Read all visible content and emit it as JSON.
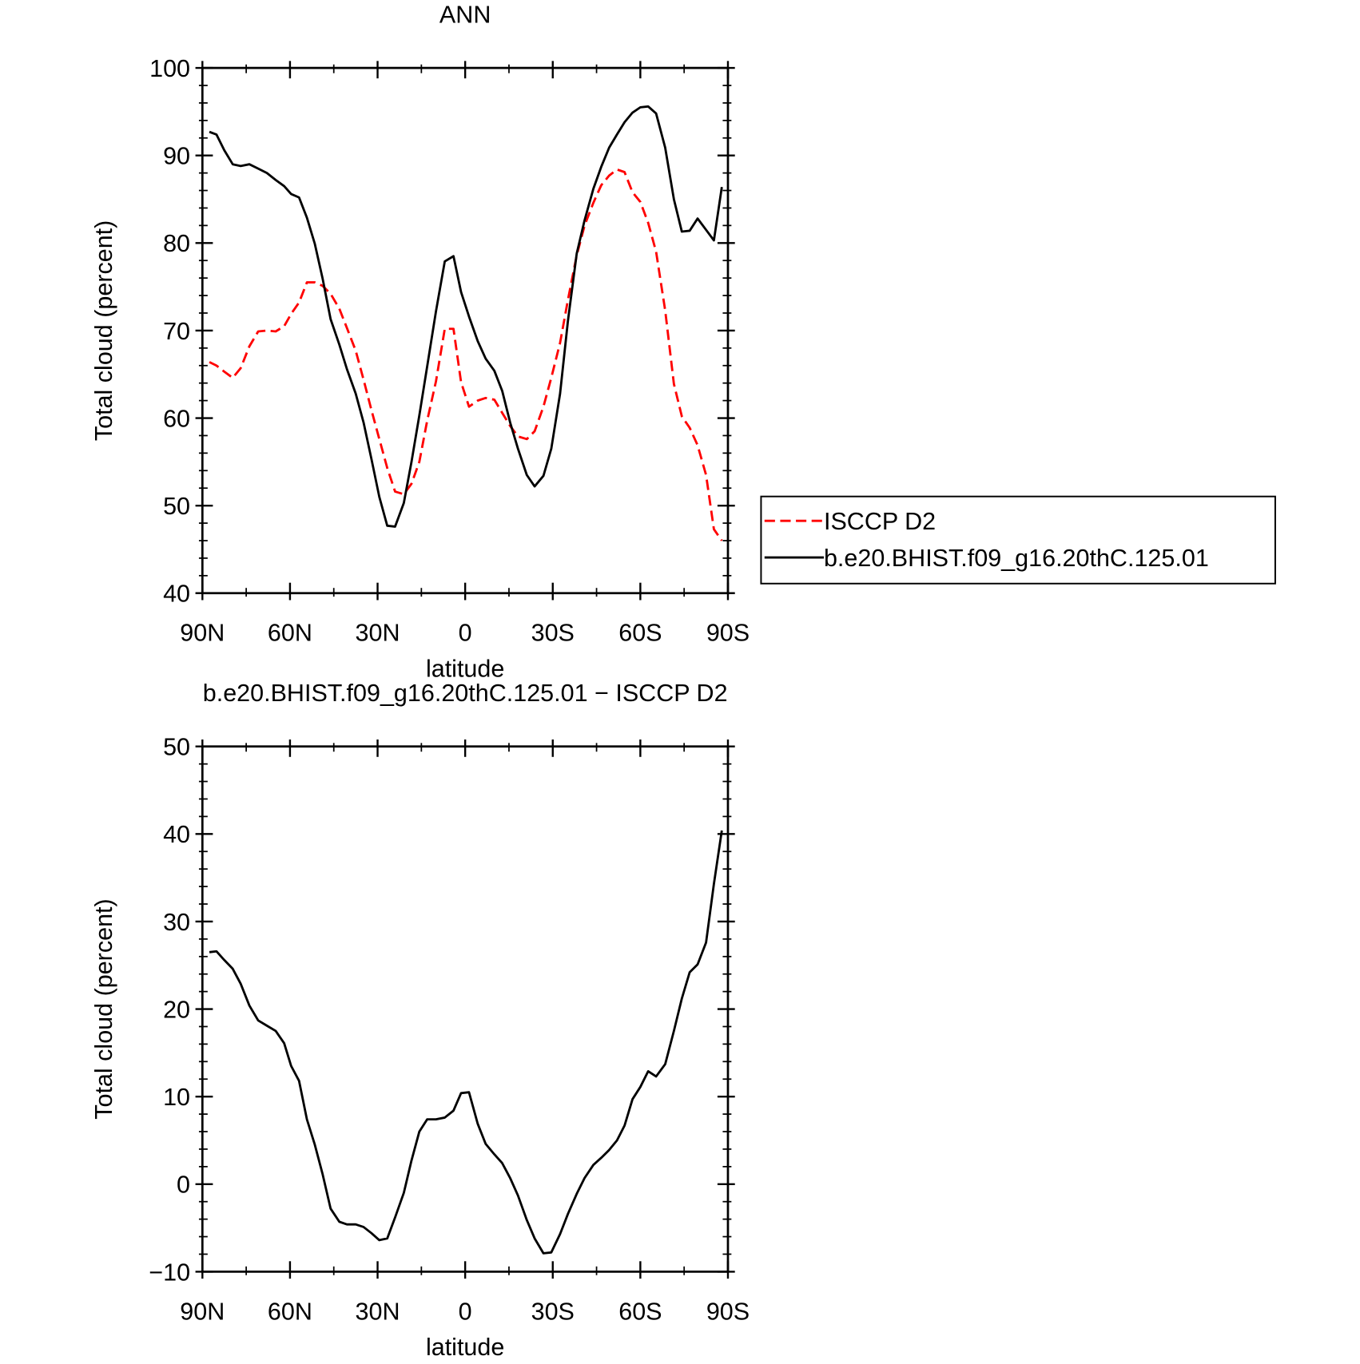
{
  "chart_data": [
    {
      "type": "line",
      "title": "ANN",
      "xlabel": "latitude",
      "ylabel": "Total cloud (percent)",
      "x": [
        87.6,
        85.2,
        82.5,
        79.6,
        76.9,
        73.9,
        70.9,
        67.9,
        64.9,
        62.0,
        59.6,
        56.9,
        54.2,
        51.5,
        48.8,
        46.1,
        43.1,
        40.5,
        37.5,
        34.8,
        32.1,
        29.4,
        26.7,
        24.0,
        21.0,
        18.4,
        15.7,
        13.0,
        10.0,
        7.0,
        4.0,
        1.4,
        -1.3,
        -4.3,
        -7.0,
        -10.0,
        -12.7,
        -15.4,
        -18.1,
        -21.1,
        -23.8,
        -26.8,
        -29.5,
        -32.5,
        -35.2,
        -38.2,
        -40.9,
        -43.9,
        -46.6,
        -49.3,
        -52.0,
        -54.6,
        -57.3,
        -60.0,
        -62.7,
        -65.4,
        -68.5,
        -71.5,
        -74.2,
        -76.9,
        -79.6,
        -82.5,
        -85.2,
        -87.9
      ],
      "series": [
        {
          "name": "ISCCP D2",
          "color": "#ff0000",
          "linestyle": "dashed",
          "values": [
            66.4,
            66.0,
            65.3,
            64.6,
            65.7,
            68.2,
            69.9,
            70.0,
            69.9,
            70.5,
            71.9,
            73.2,
            75.5,
            75.5,
            75.1,
            74.2,
            72.5,
            70.3,
            67.7,
            64.4,
            60.9,
            57.6,
            54.3,
            51.6,
            51.3,
            52.5,
            55.0,
            59.7,
            64.2,
            70.2,
            70.2,
            64.1,
            61.3,
            62.0,
            62.3,
            62.1,
            60.6,
            59.1,
            57.9,
            57.6,
            58.5,
            61.3,
            64.6,
            68.6,
            73.5,
            78.6,
            82.0,
            84.6,
            86.6,
            87.7,
            88.4,
            88.1,
            85.8,
            84.7,
            82.3,
            79.0,
            72.3,
            63.9,
            60.2,
            58.9,
            56.9,
            53.5,
            47.3,
            46.0
          ]
        },
        {
          "name": "b.e20.BHIST.f09_g16.20thC.125.01",
          "color": "#000000",
          "linestyle": "solid",
          "values": [
            92.7,
            92.4,
            90.6,
            89.0,
            88.8,
            89.0,
            88.5,
            88.0,
            87.2,
            86.5,
            85.6,
            85.2,
            82.9,
            79.9,
            75.9,
            71.3,
            68.4,
            65.6,
            62.8,
            59.5,
            55.3,
            51.0,
            47.7,
            47.6,
            50.3,
            55.0,
            60.3,
            65.9,
            72.2,
            77.9,
            78.5,
            74.4,
            71.6,
            68.8,
            66.8,
            65.4,
            63.1,
            59.5,
            56.5,
            53.5,
            52.2,
            53.4,
            56.5,
            62.8,
            71.1,
            78.8,
            82.6,
            86.2,
            88.7,
            90.9,
            92.4,
            93.8,
            94.9,
            95.5,
            95.6,
            94.8,
            90.9,
            85.0,
            81.3,
            81.4,
            82.8,
            81.5,
            80.3,
            86.4
          ]
        }
      ],
      "xlim": [
        90,
        -90
      ],
      "xticks": [
        {
          "value": 90,
          "label": "90N"
        },
        {
          "value": 60,
          "label": "60N"
        },
        {
          "value": 30,
          "label": "30N"
        },
        0,
        {
          "value": -30,
          "label": "30S"
        },
        {
          "value": -60,
          "label": "60S"
        },
        {
          "value": -90,
          "label": "90S"
        }
      ],
      "ylim": [
        40,
        100
      ],
      "yticks": [
        40,
        50,
        60,
        70,
        80,
        90,
        100
      ],
      "legend": "right"
    },
    {
      "type": "line",
      "title": "b.e20.BHIST.f09_g16.20thC.125.01 − ISCCP D2",
      "xlabel": "latitude",
      "ylabel": "Total cloud (percent)",
      "x": [
        87.6,
        85.2,
        82.5,
        79.6,
        76.9,
        73.9,
        70.9,
        67.9,
        64.9,
        62.0,
        59.6,
        56.9,
        54.2,
        51.5,
        48.8,
        46.1,
        43.1,
        40.5,
        37.5,
        34.8,
        32.1,
        29.4,
        26.7,
        24.0,
        21.0,
        18.4,
        15.7,
        13.0,
        10.0,
        7.0,
        4.0,
        1.4,
        -1.3,
        -4.3,
        -7.0,
        -10.0,
        -12.7,
        -15.4,
        -18.1,
        -21.1,
        -23.8,
        -26.8,
        -29.5,
        -32.5,
        -35.2,
        -38.2,
        -40.9,
        -43.9,
        -46.6,
        -49.3,
        -52.0,
        -54.6,
        -57.3,
        -60.0,
        -62.7,
        -65.4,
        -68.5,
        -71.5,
        -74.2,
        -76.9,
        -79.6,
        -82.5,
        -85.2,
        -87.9
      ],
      "values": [
        26.5,
        26.6,
        25.6,
        24.6,
        22.9,
        20.4,
        18.7,
        18.1,
        17.5,
        16.1,
        13.5,
        11.8,
        7.4,
        4.5,
        1.1,
        -2.8,
        -4.3,
        -4.6,
        -4.6,
        -4.9,
        -5.6,
        -6.4,
        -6.2,
        -3.8,
        -1.0,
        2.7,
        6.0,
        7.4,
        7.4,
        7.6,
        8.4,
        10.4,
        10.5,
        6.9,
        4.6,
        3.4,
        2.4,
        0.7,
        -1.3,
        -4.1,
        -6.2,
        -7.9,
        -7.8,
        -5.7,
        -3.4,
        -1.1,
        0.7,
        2.2,
        3.0,
        3.9,
        5.0,
        6.7,
        9.7,
        11.1,
        12.9,
        12.3,
        13.7,
        17.5,
        21.2,
        24.2,
        25.1,
        27.6,
        34.3,
        40.4
      ],
      "color": "#000000",
      "xlim": [
        90,
        -90
      ],
      "xticks": [
        {
          "value": 90,
          "label": "90N"
        },
        {
          "value": 60,
          "label": "60N"
        },
        {
          "value": 30,
          "label": "30N"
        },
        0,
        {
          "value": -30,
          "label": "30S"
        },
        {
          "value": -60,
          "label": "60S"
        },
        {
          "value": -90,
          "label": "90S"
        }
      ],
      "ylim": [
        -10,
        50
      ],
      "yticks": [
        {
          "value": -10,
          "label": "−10"
        },
        0,
        10,
        20,
        30,
        40,
        50
      ]
    }
  ]
}
